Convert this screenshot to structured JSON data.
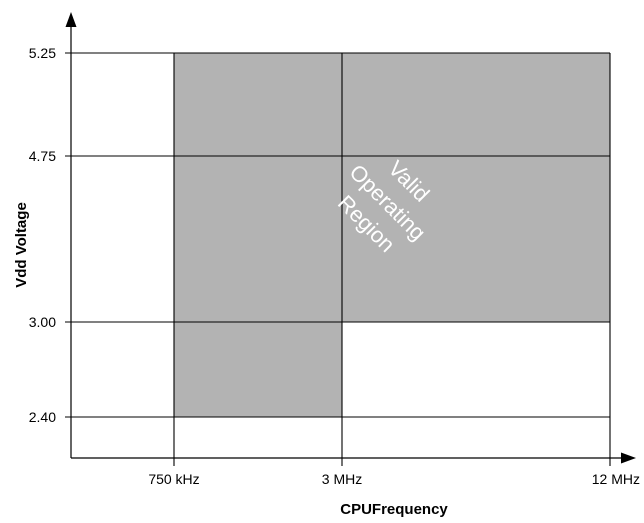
{
  "chart_data": {
    "type": "area",
    "title": "",
    "xlabel": "CPUFrequency",
    "ylabel": "Vdd Voltage",
    "x_ticks": [
      {
        "value": "750 kHz",
        "label": "750 kHz"
      },
      {
        "value": "3 MHz",
        "label": "3 MHz"
      },
      {
        "value": "12 MHz",
        "label": "12 MHz"
      }
    ],
    "y_ticks": [
      {
        "value": 2.4,
        "label": "2.40"
      },
      {
        "value": 3.0,
        "label": "3.00"
      },
      {
        "value": 4.75,
        "label": "4.75"
      },
      {
        "value": 5.25,
        "label": "5.25"
      }
    ],
    "regions": [
      {
        "name": "valid-operating-region",
        "label_lines": [
          "Valid",
          "Operating",
          "Region"
        ],
        "fill": "#b3b3b3",
        "polygon": [
          {
            "x": "750 kHz",
            "y": 2.4
          },
          {
            "x": "3 MHz",
            "y": 2.4
          },
          {
            "x": "3 MHz",
            "y": 3.0
          },
          {
            "x": "12 MHz",
            "y": 3.0
          },
          {
            "x": "12 MHz",
            "y": 5.25
          },
          {
            "x": "750 kHz",
            "y": 5.25
          }
        ]
      }
    ],
    "grid": true
  }
}
